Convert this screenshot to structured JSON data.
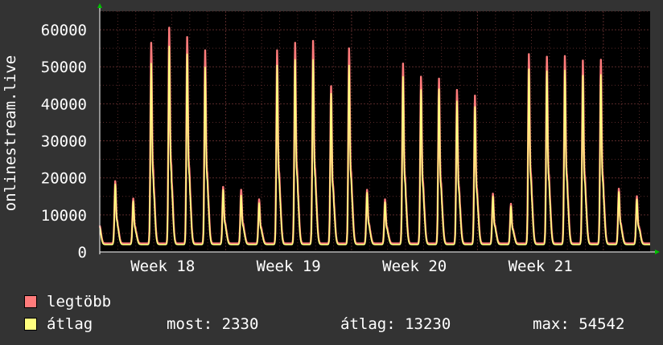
{
  "chart_data": {
    "type": "area",
    "ylabel": "onlinestream.live",
    "ylim": [
      0,
      65000
    ],
    "yticks": [
      0,
      10000,
      20000,
      30000,
      40000,
      50000,
      60000
    ],
    "ytick_labels": [
      "0",
      "10000",
      "20000",
      "30000",
      "40000",
      "50000",
      "60000"
    ],
    "x_range_days": [
      0,
      30.6
    ],
    "xticks": [
      {
        "label": "Week 18",
        "day": 3.5
      },
      {
        "label": "Week 19",
        "day": 10.5
      },
      {
        "label": "Week 20",
        "day": 17.5
      },
      {
        "label": "Week 21",
        "day": 24.5
      }
    ],
    "week_boundaries_day": [
      7,
      14,
      21,
      28
    ],
    "grid": true,
    "series": [
      {
        "name": "legtöbb",
        "color": "#ff7b7b",
        "daily_peaks": [
          18800,
          14200,
          55500,
          59500,
          57000,
          53500,
          17300,
          16500,
          14000,
          53500,
          55500,
          56000,
          44000,
          54000,
          16500,
          14000,
          50000,
          46500,
          46000,
          43000,
          41500,
          15500,
          12800,
          52500,
          51800,
          52000,
          50800,
          51000,
          16800,
          14800
        ]
      },
      {
        "name": "átlag",
        "color": "#ffff7f",
        "daily_peaks": [
          18000,
          13500,
          50000,
          54542,
          52500,
          49000,
          16500,
          15000,
          13000,
          49500,
          51000,
          51000,
          42000,
          49500,
          15800,
          13200,
          46500,
          43000,
          43200,
          40000,
          38500,
          14800,
          12200,
          48500,
          48000,
          48200,
          46800,
          47000,
          16000,
          14000
        ]
      }
    ]
  },
  "legend": {
    "items": [
      {
        "label": "legtöbb",
        "color": "#ff7b7b"
      },
      {
        "label": "átlag",
        "color": "#ffff7f"
      }
    ],
    "stats": {
      "now": "most: 2330",
      "avg": "átlag: 13230",
      "max": "max: 54542"
    }
  },
  "colors": {
    "background": "#333333",
    "plot_background": "#000000",
    "grid": "#5a2a2a",
    "axis": "#ffffff",
    "axis_arrow": "#00c000"
  }
}
